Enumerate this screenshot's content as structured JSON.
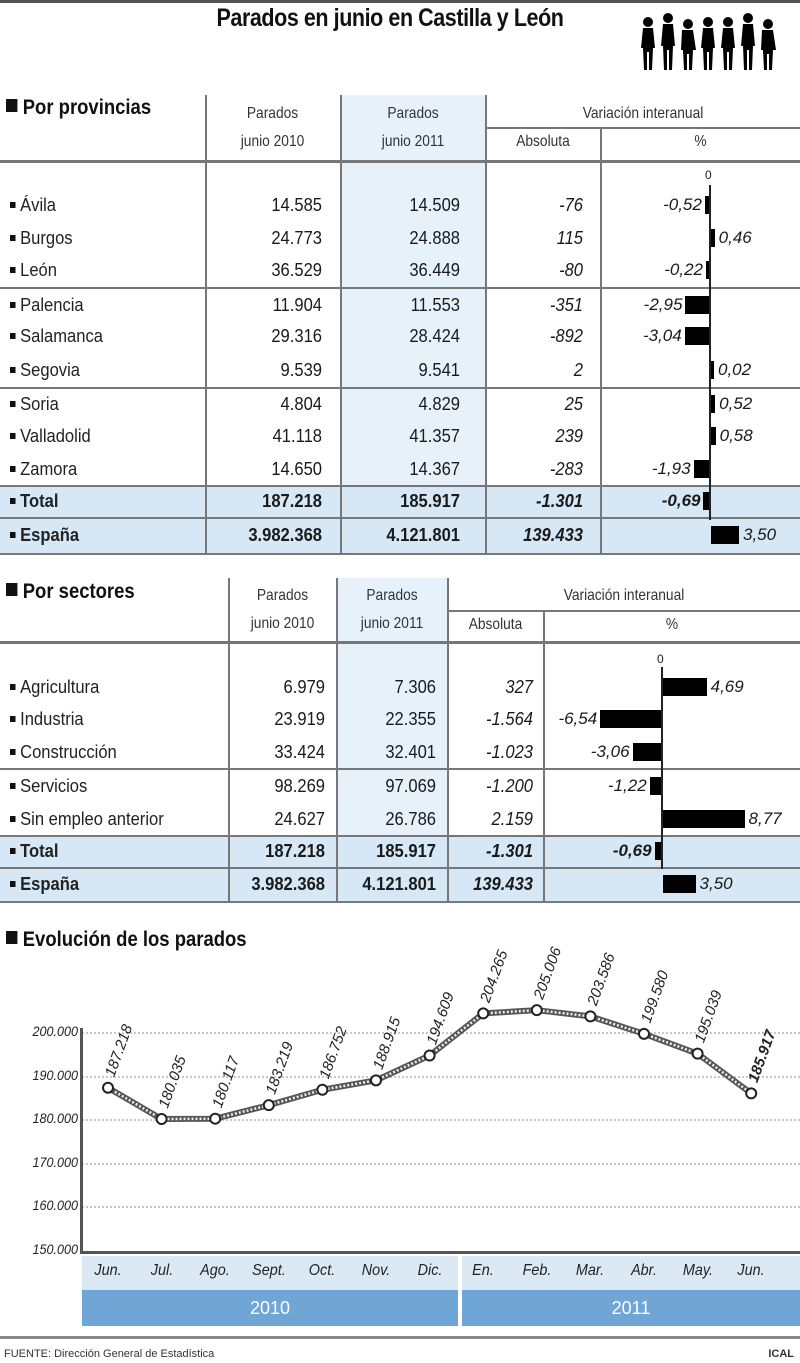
{
  "title": "Parados en junio en Castilla y León",
  "provinces_table": {
    "section_title": "Por provincias",
    "headers": {
      "col1_line1": "Parados",
      "col1_line2": "junio 2010",
      "col2_line1": "Parados",
      "col2_line2": "junio 2011",
      "variation": "Variación interanual",
      "absolute": "Absoluta",
      "percent": "%"
    },
    "zero_label": "0",
    "rows": [
      {
        "name": "Ávila",
        "jun2010": "14.585",
        "jun2011": "14.509",
        "abs": "-76",
        "pct": "-0,52",
        "pct_value": -0.52
      },
      {
        "name": "Burgos",
        "jun2010": "24.773",
        "jun2011": "24.888",
        "abs": "115",
        "pct": "0,46",
        "pct_value": 0.46
      },
      {
        "name": "León",
        "jun2010": "36.529",
        "jun2011": "36.449",
        "abs": "-80",
        "pct": "-0,22",
        "pct_value": -0.22
      },
      {
        "name": "Palencia",
        "jun2010": "11.904",
        "jun2011": "11.553",
        "abs": "-351",
        "pct": "-2,95",
        "pct_value": -2.95
      },
      {
        "name": "Salamanca",
        "jun2010": "29.316",
        "jun2011": "28.424",
        "abs": "-892",
        "pct": "-3,04",
        "pct_value": -3.04
      },
      {
        "name": "Segovia",
        "jun2010": "9.539",
        "jun2011": "9.541",
        "abs": "2",
        "pct": "0,02",
        "pct_value": 0.02
      },
      {
        "name": "Soria",
        "jun2010": "4.804",
        "jun2011": "4.829",
        "abs": "25",
        "pct": "0,52",
        "pct_value": 0.52
      },
      {
        "name": "Valladolid",
        "jun2010": "41.118",
        "jun2011": "41.357",
        "abs": "239",
        "pct": "0,58",
        "pct_value": 0.58
      },
      {
        "name": "Zamora",
        "jun2010": "14.650",
        "jun2011": "14.367",
        "abs": "-283",
        "pct": "-1,93",
        "pct_value": -1.93
      }
    ],
    "total": {
      "name": "Total",
      "jun2010": "187.218",
      "jun2011": "185.917",
      "abs": "-1.301",
      "pct": "-0,69",
      "pct_value": -0.69
    },
    "spain": {
      "name": "España",
      "jun2010": "3.982.368",
      "jun2011": "4.121.801",
      "abs": "139.433",
      "pct": "3,50",
      "pct_value": 3.5
    }
  },
  "sectors_table": {
    "section_title": "Por sectores",
    "headers": {
      "col1_line1": "Parados",
      "col1_line2": "junio 2010",
      "col2_line1": "Parados",
      "col2_line2": "junio 2011",
      "variation": "Variación interanual",
      "absolute": "Absoluta",
      "percent": "%"
    },
    "zero_label": "0",
    "rows": [
      {
        "name": "Agricultura",
        "jun2010": "6.979",
        "jun2011": "7.306",
        "abs": "327",
        "pct": "4,69",
        "pct_value": 4.69
      },
      {
        "name": "Industria",
        "jun2010": "23.919",
        "jun2011": "22.355",
        "abs": "-1.564",
        "pct": "-6,54",
        "pct_value": -6.54
      },
      {
        "name": "Construcción",
        "jun2010": "33.424",
        "jun2011": "32.401",
        "abs": "-1.023",
        "pct": "-3,06",
        "pct_value": -3.06
      },
      {
        "name": "Servicios",
        "jun2010": "98.269",
        "jun2011": "97.069",
        "abs": "-1.200",
        "pct": "-1,22",
        "pct_value": -1.22
      },
      {
        "name": "Sin empleo anterior",
        "jun2010": "24.627",
        "jun2011": "26.786",
        "abs": "2.159",
        "pct": "8,77",
        "pct_value": 8.77
      }
    ],
    "total": {
      "name": "Total",
      "jun2010": "187.218",
      "jun2011": "185.917",
      "abs": "-1.301",
      "pct": "-0,69",
      "pct_value": -0.69
    },
    "spain": {
      "name": "España",
      "jun2010": "3.982.368",
      "jun2011": "4.121.801",
      "abs": "139.433",
      "pct": "3,50",
      "pct_value": 3.5
    }
  },
  "evolution": {
    "section_title": "Evolución de los parados",
    "y_ticks": [
      "200.000",
      "190.000",
      "180.000",
      "170.000",
      "160.000",
      "150.000"
    ],
    "months": [
      "Jun.",
      "Jul.",
      "Ago.",
      "Sept.",
      "Oct.",
      "Nov.",
      "Dic.",
      "En.",
      "Feb.",
      "Mar.",
      "Abr.",
      "May.",
      "Jun."
    ],
    "years": [
      "2010",
      "2011"
    ],
    "point_labels": [
      "187.218",
      "180.035",
      "180.117",
      "183.219",
      "186.752",
      "188.915",
      "194.609",
      "204.265",
      "205.006",
      "203.586",
      "199.580",
      "195.039",
      "185.917"
    ]
  },
  "footer": {
    "source": "FUENTE: Dirección General de Estadística",
    "credit": "ICAL"
  },
  "colors": {
    "column_highlight": "#e7f1fa",
    "total_band": "#d6e8f6",
    "year_band": "#6fa6d6",
    "bars": "#000000"
  },
  "chart_data": [
    {
      "type": "bar",
      "title": "Por provincias — Variación interanual (%)",
      "categories": [
        "Ávila",
        "Burgos",
        "León",
        "Palencia",
        "Salamanca",
        "Segovia",
        "Soria",
        "Valladolid",
        "Zamora",
        "Total",
        "España"
      ],
      "values": [
        -0.52,
        0.46,
        -0.22,
        -2.95,
        -3.04,
        0.02,
        0.52,
        0.58,
        -1.93,
        -0.69,
        3.5
      ],
      "orientation": "horizontal",
      "table": {
        "columns": [
          "Parados junio 2010",
          "Parados junio 2011",
          "Variación interanual Absoluta",
          "Variación interanual %"
        ],
        "rows": [
          [
            "Ávila",
            14585,
            14509,
            -76,
            -0.52
          ],
          [
            "Burgos",
            24773,
            24888,
            115,
            0.46
          ],
          [
            "León",
            36529,
            36449,
            -80,
            -0.22
          ],
          [
            "Palencia",
            11904,
            11553,
            -351,
            -2.95
          ],
          [
            "Salamanca",
            29316,
            28424,
            -892,
            -3.04
          ],
          [
            "Segovia",
            9539,
            9541,
            2,
            0.02
          ],
          [
            "Soria",
            4804,
            4829,
            25,
            0.52
          ],
          [
            "Valladolid",
            41118,
            41357,
            239,
            0.58
          ],
          [
            "Zamora",
            14650,
            14367,
            -283,
            -1.93
          ],
          [
            "Total",
            187218,
            185917,
            -1301,
            -0.69
          ],
          [
            "España",
            3982368,
            4121801,
            139433,
            3.5
          ]
        ]
      }
    },
    {
      "type": "bar",
      "title": "Por sectores — Variación interanual (%)",
      "categories": [
        "Agricultura",
        "Industria",
        "Construcción",
        "Servicios",
        "Sin empleo anterior",
        "Total",
        "España"
      ],
      "values": [
        4.69,
        -6.54,
        -3.06,
        -1.22,
        8.77,
        -0.69,
        3.5
      ],
      "orientation": "horizontal",
      "table": {
        "columns": [
          "Parados junio 2010",
          "Parados junio 2011",
          "Variación interanual Absoluta",
          "Variación interanual %"
        ],
        "rows": [
          [
            "Agricultura",
            6979,
            7306,
            327,
            4.69
          ],
          [
            "Industria",
            23919,
            22355,
            -1564,
            -6.54
          ],
          [
            "Construcción",
            33424,
            32401,
            -1023,
            -3.06
          ],
          [
            "Servicios",
            98269,
            97069,
            -1200,
            -1.22
          ],
          [
            "Sin empleo anterior",
            24627,
            26786,
            2159,
            8.77
          ],
          [
            "Total",
            187218,
            185917,
            -1301,
            -0.69
          ],
          [
            "España",
            3982368,
            4121801,
            139433,
            3.5
          ]
        ]
      }
    },
    {
      "type": "line",
      "title": "Evolución de los parados",
      "x": [
        "Jun. 2010",
        "Jul. 2010",
        "Ago. 2010",
        "Sept. 2010",
        "Oct. 2010",
        "Nov. 2010",
        "Dic. 2010",
        "En. 2011",
        "Feb. 2011",
        "Mar. 2011",
        "Abr. 2011",
        "May. 2011",
        "Jun. 2011"
      ],
      "series": [
        {
          "name": "Parados",
          "values": [
            187218,
            180035,
            180117,
            183219,
            186752,
            188915,
            194609,
            204265,
            205006,
            203586,
            199580,
            195039,
            185917
          ]
        }
      ],
      "xlabel": "",
      "ylabel": "",
      "ylim": [
        150000,
        200000
      ],
      "y_ticks": [
        150000,
        160000,
        170000,
        180000,
        190000,
        200000
      ],
      "grid": true,
      "legend": "none"
    }
  ]
}
